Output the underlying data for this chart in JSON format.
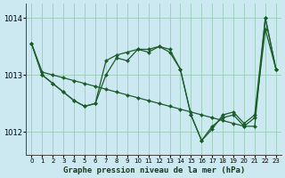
{
  "title": "Graphe pression niveau de la mer (hPa)",
  "bg_color": "#cce8f0",
  "grid_color": "#99ccbb",
  "line_color": "#1a5c2a",
  "marker_color": "#1a5c2a",
  "xlim": [
    -0.5,
    23.5
  ],
  "ylim": [
    1011.6,
    1014.25
  ],
  "yticks": [
    1012,
    1013,
    1014
  ],
  "xticks": [
    0,
    1,
    2,
    3,
    4,
    5,
    6,
    7,
    8,
    9,
    10,
    11,
    12,
    13,
    14,
    15,
    16,
    17,
    18,
    19,
    20,
    21,
    22,
    23
  ],
  "series": [
    {
      "x": [
        0,
        1,
        2,
        3,
        4,
        5,
        6,
        7,
        8,
        9,
        10,
        11,
        12,
        13,
        14,
        15,
        16,
        17,
        18,
        19,
        20,
        21,
        22,
        23
      ],
      "y": [
        1013.55,
        1013.05,
        1013.0,
        1012.95,
        1012.9,
        1012.85,
        1012.8,
        1012.75,
        1012.7,
        1012.65,
        1012.6,
        1012.55,
        1012.5,
        1012.45,
        1012.4,
        1012.35,
        1012.3,
        1012.25,
        1012.2,
        1012.15,
        1012.1,
        1012.1,
        1014.0,
        1013.1
      ]
    },
    {
      "x": [
        0,
        1,
        2,
        3,
        4,
        5,
        6,
        7,
        8,
        9,
        10,
        11,
        12,
        13,
        14,
        15,
        16,
        17,
        18,
        19,
        20,
        21,
        22,
        23
      ],
      "y": [
        1013.55,
        1013.0,
        1012.85,
        1012.7,
        1012.55,
        1012.45,
        1012.5,
        1013.25,
        1013.35,
        1013.4,
        1013.45,
        1013.45,
        1013.5,
        1013.4,
        1013.1,
        1012.3,
        1011.85,
        1012.05,
        1012.3,
        1012.35,
        1012.15,
        1012.3,
        1014.0,
        1013.1
      ]
    },
    {
      "x": [
        0,
        1,
        2,
        3,
        4,
        5,
        6,
        7,
        8,
        9,
        10,
        11,
        12,
        13,
        14,
        15,
        16,
        17,
        18,
        19,
        20,
        21,
        22,
        23
      ],
      "y": [
        1013.55,
        1013.0,
        1012.85,
        1012.7,
        1012.55,
        1012.45,
        1012.5,
        1013.0,
        1013.3,
        1013.25,
        1013.45,
        1013.4,
        1013.5,
        1013.45,
        1013.1,
        1012.3,
        1011.85,
        1012.1,
        1012.25,
        1012.3,
        1012.1,
        1012.25,
        1013.8,
        1013.1
      ]
    }
  ]
}
